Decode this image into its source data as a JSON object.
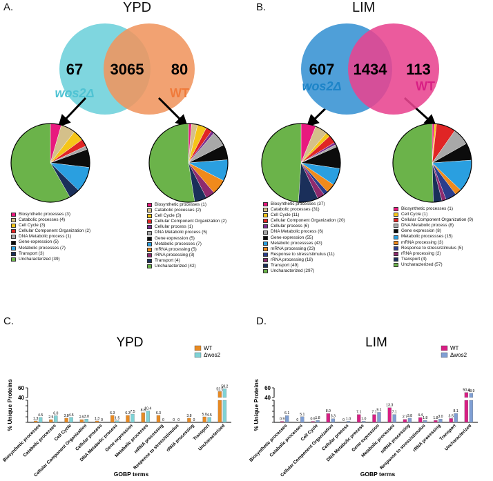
{
  "panels": {
    "a": {
      "letter": "A.",
      "title": "YPD",
      "venn": {
        "left_count": "67",
        "overlap_count": "3065",
        "right_count": "80",
        "left_label": "wos2Δ",
        "right_label": "WT",
        "left_color": "#7fd6df",
        "right_color": "#f0955f"
      }
    },
    "b": {
      "letter": "B.",
      "title": "LIM",
      "venn": {
        "left_count": "607",
        "overlap_count": "1434",
        "right_count": "113",
        "left_label": "wos2Δ",
        "right_label": "WT",
        "left_color": "#4f9fd8",
        "right_color": "#e8448f"
      }
    },
    "c": {
      "letter": "C.",
      "title": "YPD"
    },
    "d": {
      "letter": "D.",
      "title": "LIM"
    }
  },
  "pies": {
    "a_wos2": [
      {
        "label": "Biosynthetic processes (3)",
        "value": 3,
        "color": "#e8197e"
      },
      {
        "label": "Catabolic processes (4)",
        "value": 4,
        "color": "#d4c08a"
      },
      {
        "label": "Cell Cycle (3)",
        "value": 3,
        "color": "#f5c518"
      },
      {
        "label": "Cellular Component Organization (2)",
        "value": 2,
        "color": "#e02525"
      },
      {
        "label": "DNA Metabolic process (1)",
        "value": 1,
        "color": "#a8a8a8"
      },
      {
        "label": "Gene expression (5)",
        "value": 5,
        "color": "#0c0c0c"
      },
      {
        "label": "Metabolic processes (7)",
        "value": 7,
        "color": "#2a9fe0"
      },
      {
        "label": "Transport (3)",
        "value": 3,
        "color": "#1a2f5a"
      },
      {
        "label": "Uncharacterized (39)",
        "value": 39,
        "color": "#6bb34a"
      }
    ],
    "a_wt": [
      {
        "label": "Biosynthetic processes (1)",
        "value": 1,
        "color": "#e8197e"
      },
      {
        "label": "Catabolic processes (2)",
        "value": 2,
        "color": "#d4c08a"
      },
      {
        "label": "Cell Cycle (3)",
        "value": 3,
        "color": "#f5c518"
      },
      {
        "label": "Cellular Component Organization (2)",
        "value": 2,
        "color": "#e02525"
      },
      {
        "label": "Cellular process (1)",
        "value": 1,
        "color": "#7b2d8e"
      },
      {
        "label": "DNA Metabolic process (5)",
        "value": 5,
        "color": "#a8a8a8"
      },
      {
        "label": "Gene expression (5)",
        "value": 5,
        "color": "#0c0c0c"
      },
      {
        "label": "Metabolic processes (7)",
        "value": 7,
        "color": "#2a9fe0"
      },
      {
        "label": "mRNA processing (5)",
        "value": 5,
        "color": "#f08a1c"
      },
      {
        "label": "rRNA processing (3)",
        "value": 3,
        "color": "#8e2a6e"
      },
      {
        "label": "Transport (4)",
        "value": 4,
        "color": "#1a2f5a"
      },
      {
        "label": "Uncharacterized (42)",
        "value": 42,
        "color": "#6bb34a"
      }
    ],
    "b_wos2": [
      {
        "label": "Biosynthetic processes (37)",
        "value": 37,
        "color": "#e8197e"
      },
      {
        "label": "Catabolic processes (31)",
        "value": 31,
        "color": "#d4c08a"
      },
      {
        "label": "Cell Cycle (11)",
        "value": 11,
        "color": "#f5c518"
      },
      {
        "label": "Cellular Component Organization (20)",
        "value": 20,
        "color": "#e02525"
      },
      {
        "label": "Cellular process (6)",
        "value": 6,
        "color": "#7b2d8e"
      },
      {
        "label": "DNA Metabolic process (6)",
        "value": 6,
        "color": "#a8a8a8"
      },
      {
        "label": "Gene expression (55)",
        "value": 55,
        "color": "#0c0c0c"
      },
      {
        "label": "Metabolic processses (43)",
        "value": 43,
        "color": "#2a9fe0"
      },
      {
        "label": "mRNA processing (23)",
        "value": 23,
        "color": "#f08a1c"
      },
      {
        "label": "Response to stress/stimulus (11)",
        "value": 11,
        "color": "#2b3d8c"
      },
      {
        "label": "rRNA processing (18)",
        "value": 18,
        "color": "#8e2a6e"
      },
      {
        "label": "Transport (49)",
        "value": 49,
        "color": "#1a2f5a"
      },
      {
        "label": "Uncharacterized (297)",
        "value": 297,
        "color": "#6bb34a"
      }
    ],
    "b_wt": [
      {
        "label": "Biosynthetic processes (1)",
        "value": 1,
        "color": "#e8197e"
      },
      {
        "label": "Cell Cycle (1)",
        "value": 1,
        "color": "#f5c518"
      },
      {
        "label": "Cellular Component Organization (9)",
        "value": 9,
        "color": "#e02525"
      },
      {
        "label": "DNA Metabolic process (8)",
        "value": 8,
        "color": "#a8a8a8"
      },
      {
        "label": "Gene expression (8)",
        "value": 8,
        "color": "#0c0c0c"
      },
      {
        "label": "Metabolic processses (15)",
        "value": 15,
        "color": "#2a9fe0"
      },
      {
        "label": "mRNA processing (3)",
        "value": 3,
        "color": "#f08a1c"
      },
      {
        "label": "Response to stress/stimulus (5)",
        "value": 5,
        "color": "#2b3d8c"
      },
      {
        "label": "rRNA processing (2)",
        "value": 2,
        "color": "#8e2a6e"
      },
      {
        "label": "Transport (4)",
        "value": 4,
        "color": "#1a2f5a"
      },
      {
        "label": "Uncharacterized (57)",
        "value": 57,
        "color": "#6bb34a"
      }
    ]
  },
  "chart_data": [
    {
      "type": "bar",
      "title": "YPD",
      "xlabel": "GOBP terms",
      "ylabel": "% Unique Proteins",
      "broken_axis": {
        "lower_ticks": [
          0,
          5,
          10,
          15,
          20
        ],
        "upper_ticks": [
          40,
          60
        ]
      },
      "categories": [
        "Biosynthetic processes",
        "Catabolic processes",
        "Cell Cycle",
        "Cellular Component Organization",
        "Cellular process",
        "DNA Metabolic process",
        "Gene expression",
        "Metabolic processes",
        "mRNA processing",
        "Response to stress/stimulus",
        "rRNA processing",
        "Transport",
        "Uncharacterized"
      ],
      "series": [
        {
          "name": "WT",
          "color": "#e88a22",
          "values": [
            1.3,
            2.5,
            3.8,
            2.5,
            1.3,
            6.3,
            6.3,
            8.8,
            6.3,
            0,
            3.8,
            5.0,
            52.5
          ],
          "labels": [
            "1.3",
            "2.5",
            "3.8",
            "2.5",
            "1.3",
            "6.3",
            "6.3",
            "8.8",
            "6.3",
            "0",
            "3.8",
            "5.0",
            "52.5"
          ]
        },
        {
          "name": "Δwos2",
          "color": "#7fd3d6",
          "values": [
            4.5,
            6.0,
            4.5,
            3.0,
            0,
            1.5,
            7.5,
            10.4,
            0,
            0,
            0,
            4.5,
            58.2
          ],
          "labels": [
            "4.5",
            "6.0",
            "4.5",
            "3.0",
            "0",
            "1.5",
            "7.5",
            "10.4",
            "0",
            "0",
            "0",
            "4.5",
            "58.2"
          ]
        }
      ]
    },
    {
      "type": "bar",
      "title": "LIM",
      "xlabel": "GOBP terms",
      "ylabel": "% Unique Proteins",
      "broken_axis": {
        "lower_ticks": [
          0,
          5,
          10,
          15,
          20
        ],
        "upper_ticks": [
          40,
          60
        ]
      },
      "categories": [
        "Biosynthetic processes",
        "Catabolic processes",
        "Cell Cycle",
        "Cellular Component Organization",
        "Cellular process",
        "DNA Metabolic process",
        "Gene expression",
        "Metabolic processes",
        "mRNA processing",
        "Response to stress/stimulus",
        "rRNA processing",
        "Transport",
        "Uncharacterized"
      ],
      "series": [
        {
          "name": "WT",
          "color": "#d81e84",
          "values": [
            0.9,
            0,
            0.9,
            8.0,
            0,
            7.1,
            7.1,
            13.3,
            2.7,
            4.4,
            1.8,
            3.5,
            50.4
          ],
          "labels": [
            "0.9",
            "0",
            "0.9",
            "8.0",
            "0",
            "7.1",
            "7.1",
            "13.3",
            "2.7",
            "4.4",
            "1.8",
            "3.5",
            "50.4"
          ]
        },
        {
          "name": "Δwos2",
          "color": "#7f9fd4",
          "values": [
            6.1,
            5.1,
            1.8,
            3.3,
            1.0,
            1.0,
            9.1,
            7.1,
            3.8,
            1.8,
            3.0,
            8.1,
            48.9
          ],
          "labels": [
            "6.1",
            "5.1",
            "1.8",
            "3.3",
            "1.0",
            "1.0",
            "9.1",
            "7.1",
            "3.8",
            "1.8",
            "3.0",
            "8.1",
            "48.9"
          ]
        }
      ]
    }
  ]
}
